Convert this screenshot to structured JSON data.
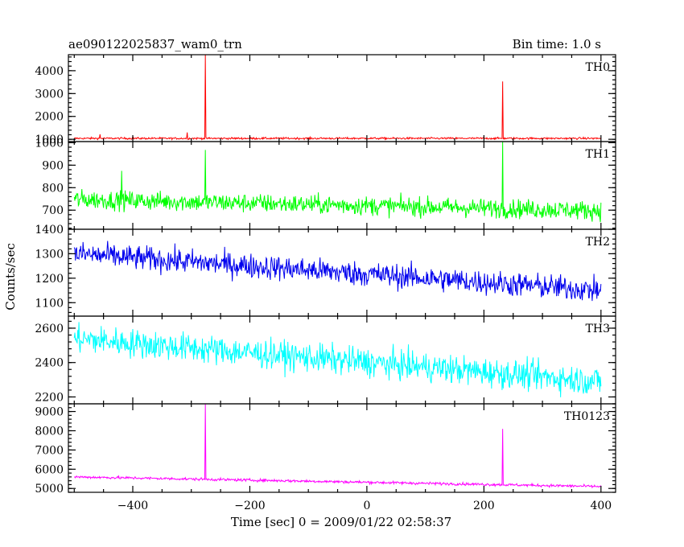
{
  "chart_data": {
    "type": "line",
    "title": "ae090122025837_wam0_trn",
    "subtitle": "Bin time: 1.0 s",
    "xlabel": "Time [sec] 0 = 2009/01/22 02:58:37",
    "ylabel": "Counts/sec",
    "xlim": [
      -510,
      425
    ],
    "x_ticks": [
      -400,
      -200,
      0,
      200,
      400
    ],
    "x_tick_labels": [
      "−400",
      "−200",
      "0",
      "200",
      "400"
    ],
    "x_range": [
      -500,
      400
    ],
    "bin": 1,
    "panels": [
      {
        "name": "TH0",
        "color": "#ff0000",
        "ylim": [
          900,
          4700
        ],
        "yticks": [
          1000,
          2000,
          3000,
          4000
        ],
        "noise": 30,
        "trend": [
          [
            -500,
            1040
          ],
          [
            400,
            1040
          ]
        ],
        "spikes": [
          [
            -456,
            1220
          ],
          [
            -307,
            1300
          ],
          [
            -276,
            4700
          ],
          [
            232,
            3530
          ]
        ]
      },
      {
        "name": "TH1",
        "color": "#00ff00",
        "ylim": [
          615,
          1005
        ],
        "yticks": [
          700,
          800,
          900,
          1000
        ],
        "noise": 30,
        "trend": [
          [
            -500,
            748
          ],
          [
            400,
            698
          ]
        ],
        "spikes": [
          [
            -419,
            875
          ],
          [
            -276,
            968
          ],
          [
            232,
            1005
          ]
        ]
      },
      {
        "name": "TH2",
        "color": "#0000ee",
        "ylim": [
          1045,
          1400
        ],
        "yticks": [
          1100,
          1200,
          1300,
          1400
        ],
        "noise": 36,
        "trend": [
          [
            -500,
            1300
          ],
          [
            400,
            1150
          ]
        ],
        "spikes": []
      },
      {
        "name": "TH3",
        "color": "#00ffff",
        "ylim": [
          2160,
          2670
        ],
        "yticks": [
          2200,
          2400,
          2600
        ],
        "noise": 60,
        "trend": [
          [
            -500,
            2540
          ],
          [
            400,
            2290
          ]
        ],
        "spikes": []
      },
      {
        "name": "TH0123",
        "color": "#ff00ff",
        "ylim": [
          4800,
          9400
        ],
        "yticks": [
          5000,
          6000,
          7000,
          8000,
          9000
        ],
        "noise": 50,
        "trend": [
          [
            -500,
            5600
          ],
          [
            400,
            5100
          ]
        ],
        "spikes": [
          [
            -276,
            9400
          ],
          [
            232,
            8100
          ]
        ]
      }
    ]
  }
}
